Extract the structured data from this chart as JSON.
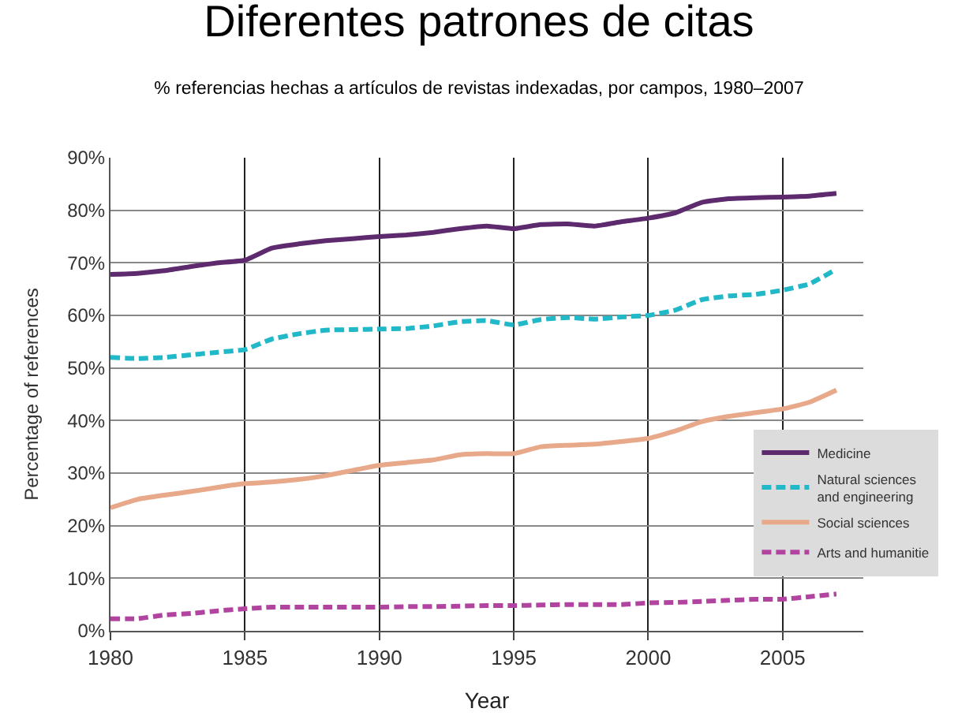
{
  "chart_data": {
    "type": "line",
    "title": "Diferentes patrones de citas",
    "subtitle": "% referencias hechas a artículos de revistas indexadas, por campos, 1980–2007",
    "xlabel": "Year",
    "ylabel": "Percentage of references",
    "x": [
      1980,
      1981,
      1982,
      1983,
      1984,
      1985,
      1986,
      1987,
      1988,
      1989,
      1990,
      1991,
      1992,
      1993,
      1994,
      1995,
      1996,
      1997,
      1998,
      1999,
      2000,
      2001,
      2002,
      2003,
      2004,
      2005,
      2006,
      2007
    ],
    "series": [
      {
        "name": "Medicine",
        "color": "#5e2a6e",
        "line_style": "solid",
        "values": [
          67.8,
          68,
          68.5,
          69.3,
          70,
          70.5,
          72.8,
          73.6,
          74.2,
          74.6,
          75,
          75.3,
          75.8,
          76.5,
          77,
          76.5,
          77.3,
          77.4,
          77,
          77.8,
          78.5,
          79.5,
          81.5,
          82.2,
          82.4,
          82.5,
          82.7,
          83.2
        ]
      },
      {
        "name": "Natural sciences\nand engineering",
        "color": "#21b8c8",
        "line_style": "dashed",
        "values": [
          52,
          51.8,
          52,
          52.5,
          53,
          53.5,
          55.5,
          56.5,
          57.2,
          57.3,
          57.4,
          57.5,
          58,
          58.8,
          59,
          58.2,
          59.2,
          59.6,
          59.3,
          59.7,
          60,
          61,
          63,
          63.7,
          64,
          64.8,
          66,
          68.8
        ]
      },
      {
        "name": "Social sciences",
        "color": "#e8a88a",
        "line_style": "solid",
        "values": [
          23.4,
          25,
          25.8,
          26.5,
          27.3,
          28,
          28.3,
          28.8,
          29.5,
          30.5,
          31.5,
          32,
          32.5,
          33.5,
          33.7,
          33.7,
          35,
          35.3,
          35.5,
          36,
          36.6,
          38,
          39.8,
          40.8,
          41.5,
          42.2,
          43.5,
          45.8
        ]
      },
      {
        "name": "Arts and humanitie",
        "color": "#b0449e",
        "line_style": "dashed",
        "values": [
          2.3,
          2.3,
          3,
          3.3,
          3.8,
          4.2,
          4.5,
          4.5,
          4.5,
          4.5,
          4.5,
          4.6,
          4.6,
          4.7,
          4.8,
          4.8,
          4.9,
          5,
          5,
          5,
          5.3,
          5.4,
          5.6,
          5.8,
          6,
          6,
          6.5,
          7
        ]
      }
    ],
    "xlim": [
      1980,
      2008
    ],
    "xticks": [
      1980,
      1985,
      1990,
      1995,
      2000,
      2005
    ],
    "ylim": [
      0,
      90
    ],
    "yticks": [
      {
        "value": 0,
        "label": "0%"
      },
      {
        "value": 10,
        "label": "10%"
      },
      {
        "value": 20,
        "label": "20%"
      },
      {
        "value": 30,
        "label": "30%"
      },
      {
        "value": 40,
        "label": "40%"
      },
      {
        "value": 50,
        "label": "50%"
      },
      {
        "value": 60,
        "label": "60%"
      },
      {
        "value": 70,
        "label": "70%"
      },
      {
        "value": 80,
        "label": "80%"
      },
      {
        "value": 90,
        "label": "90%"
      }
    ],
    "grid": true,
    "legend": "bottom right",
    "marker": "none"
  }
}
